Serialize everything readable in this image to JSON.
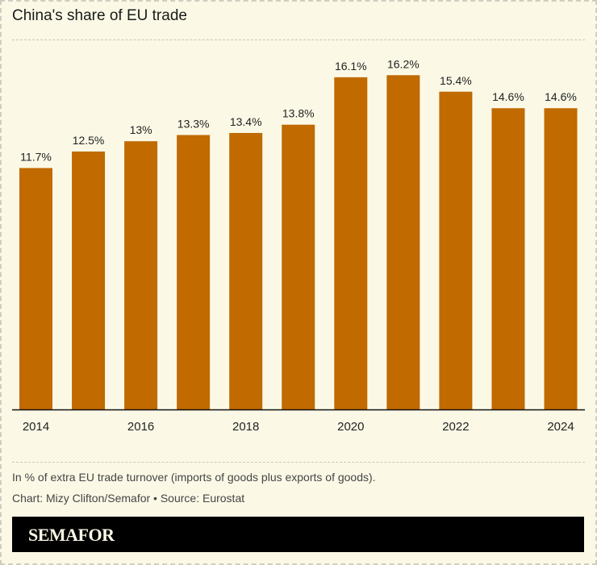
{
  "title": "China's share of EU trade",
  "chart_data": {
    "type": "bar",
    "title": "China's share of EU trade",
    "categories": [
      "2014",
      "2015",
      "2016",
      "2017",
      "2018",
      "2019",
      "2020",
      "2021",
      "2022",
      "2023",
      "2024"
    ],
    "values": [
      11.7,
      12.5,
      13,
      13.3,
      13.4,
      13.8,
      16.1,
      16.2,
      15.4,
      14.6,
      14.6
    ],
    "data_labels": [
      "11.7%",
      "12.5%",
      "13%",
      "13.3%",
      "13.4%",
      "13.8%",
      "16.1%",
      "16.2%",
      "15.4%",
      "14.6%",
      "14.6%"
    ],
    "x_tick_labels": [
      "2014",
      "2016",
      "2018",
      "2020",
      "2022",
      "2024"
    ],
    "xlabel": "",
    "ylabel": "",
    "ylim": [
      0,
      17.5
    ],
    "grid": false,
    "bar_color": "#c06a00"
  },
  "footer": {
    "note": "In % of extra EU trade turnover (imports of goods plus exports of goods).",
    "credit": "Chart: Mizy Clifton/Semafor • Source: Eurostat"
  },
  "brand": "SEMAFOR"
}
